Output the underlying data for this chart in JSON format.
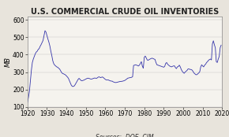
{
  "title": "U.S. COMMERCIAL CRUDE OIL INVENTORIES",
  "ylabel": "MB",
  "source_label": "Sources:  DOE, CIM",
  "xlim": [
    1920,
    2020
  ],
  "ylim": [
    100,
    620
  ],
  "yticks": [
    100,
    200,
    300,
    400,
    500,
    600
  ],
  "xticks": [
    1920,
    1930,
    1940,
    1950,
    1960,
    1970,
    1980,
    1990,
    2000,
    2010,
    2020
  ],
  "line_color": "#3333aa",
  "bg_color": "#e8e4dc",
  "plot_bg_color": "#f5f3ee",
  "line_width": 0.6,
  "title_fontsize": 7.0,
  "axis_fontsize": 5.5,
  "source_fontsize": 5.5,
  "years": [
    1920.0,
    1920.5,
    1921.0,
    1921.5,
    1922.0,
    1922.5,
    1923.0,
    1923.5,
    1924.0,
    1924.5,
    1925.0,
    1925.5,
    1926.0,
    1926.5,
    1927.0,
    1927.5,
    1928.0,
    1928.5,
    1929.0,
    1929.5,
    1930.0,
    1930.5,
    1931.0,
    1931.5,
    1932.0,
    1932.5,
    1933.0,
    1933.5,
    1934.0,
    1934.5,
    1935.0,
    1935.5,
    1936.0,
    1936.5,
    1937.0,
    1937.5,
    1938.0,
    1938.5,
    1939.0,
    1939.5,
    1940.0,
    1940.5,
    1941.0,
    1941.5,
    1942.0,
    1942.5,
    1943.0,
    1943.5,
    1944.0,
    1944.5,
    1945.0,
    1945.5,
    1946.0,
    1946.5,
    1947.0,
    1947.5,
    1948.0,
    1948.5,
    1949.0,
    1949.5,
    1950.0,
    1950.5,
    1951.0,
    1951.5,
    1952.0,
    1952.5,
    1953.0,
    1953.5,
    1954.0,
    1954.5,
    1955.0,
    1955.5,
    1956.0,
    1956.5,
    1957.0,
    1957.5,
    1958.0,
    1958.5,
    1959.0,
    1959.5,
    1960.0,
    1960.5,
    1961.0,
    1961.5,
    1962.0,
    1962.5,
    1963.0,
    1963.5,
    1964.0,
    1964.5,
    1965.0,
    1965.5,
    1966.0,
    1966.5,
    1967.0,
    1967.5,
    1968.0,
    1968.5,
    1969.0,
    1969.5,
    1970.0,
    1970.5,
    1971.0,
    1971.5,
    1972.0,
    1972.5,
    1973.0,
    1973.5,
    1974.0,
    1974.5,
    1975.0,
    1975.5,
    1976.0,
    1976.5,
    1977.0,
    1977.5,
    1978.0,
    1978.5,
    1979.0,
    1979.5,
    1980.0,
    1980.5,
    1981.0,
    1981.5,
    1982.0,
    1982.5,
    1983.0,
    1983.5,
    1984.0,
    1984.5,
    1985.0,
    1985.5,
    1986.0,
    1986.5,
    1987.0,
    1987.5,
    1988.0,
    1988.5,
    1989.0,
    1989.5,
    1990.0,
    1990.5,
    1991.0,
    1991.5,
    1992.0,
    1992.5,
    1993.0,
    1993.5,
    1994.0,
    1994.5,
    1995.0,
    1995.5,
    1996.0,
    1996.5,
    1997.0,
    1997.5,
    1998.0,
    1998.5,
    1999.0,
    1999.5,
    2000.0,
    2000.5,
    2001.0,
    2001.5,
    2002.0,
    2002.5,
    2003.0,
    2003.5,
    2004.0,
    2004.5,
    2005.0,
    2005.5,
    2006.0,
    2006.5,
    2007.0,
    2007.5,
    2008.0,
    2008.5,
    2009.0,
    2009.5,
    2010.0,
    2010.5,
    2011.0,
    2011.5,
    2012.0,
    2012.5,
    2013.0,
    2013.5,
    2014.0,
    2014.5,
    2015.0,
    2015.5,
    2016.0,
    2016.5,
    2017.0,
    2017.5,
    2018.0,
    2018.5,
    2019.0,
    2019.5
  ],
  "values": [
    125,
    155,
    190,
    250,
    310,
    355,
    375,
    390,
    405,
    415,
    420,
    430,
    435,
    448,
    458,
    470,
    482,
    510,
    538,
    530,
    510,
    490,
    472,
    450,
    420,
    395,
    365,
    348,
    340,
    335,
    330,
    328,
    322,
    318,
    308,
    298,
    292,
    290,
    287,
    284,
    278,
    272,
    265,
    252,
    238,
    225,
    218,
    217,
    220,
    228,
    238,
    248,
    258,
    264,
    258,
    252,
    250,
    252,
    254,
    257,
    260,
    263,
    265,
    264,
    262,
    260,
    260,
    262,
    264,
    266,
    265,
    264,
    268,
    272,
    272,
    268,
    270,
    272,
    268,
    263,
    258,
    255,
    255,
    255,
    252,
    250,
    248,
    248,
    244,
    242,
    240,
    240,
    241,
    243,
    244,
    246,
    246,
    247,
    248,
    250,
    252,
    256,
    260,
    265,
    266,
    268,
    268,
    270,
    273,
    338,
    340,
    342,
    340,
    338,
    335,
    340,
    350,
    360,
    335,
    322,
    385,
    392,
    382,
    370,
    368,
    372,
    375,
    378,
    380,
    378,
    375,
    373,
    355,
    342,
    340,
    338,
    336,
    334,
    332,
    330,
    328,
    333,
    350,
    355,
    345,
    340,
    335,
    332,
    330,
    333,
    335,
    336,
    326,
    320,
    330,
    332,
    340,
    330,
    315,
    305,
    298,
    293,
    300,
    305,
    310,
    318,
    318,
    315,
    315,
    312,
    305,
    295,
    290,
    285,
    285,
    290,
    295,
    302,
    330,
    342,
    335,
    330,
    340,
    345,
    355,
    360,
    368,
    372,
    375,
    370,
    462,
    480,
    458,
    440,
    360,
    355,
    375,
    390,
    440,
    455
  ]
}
